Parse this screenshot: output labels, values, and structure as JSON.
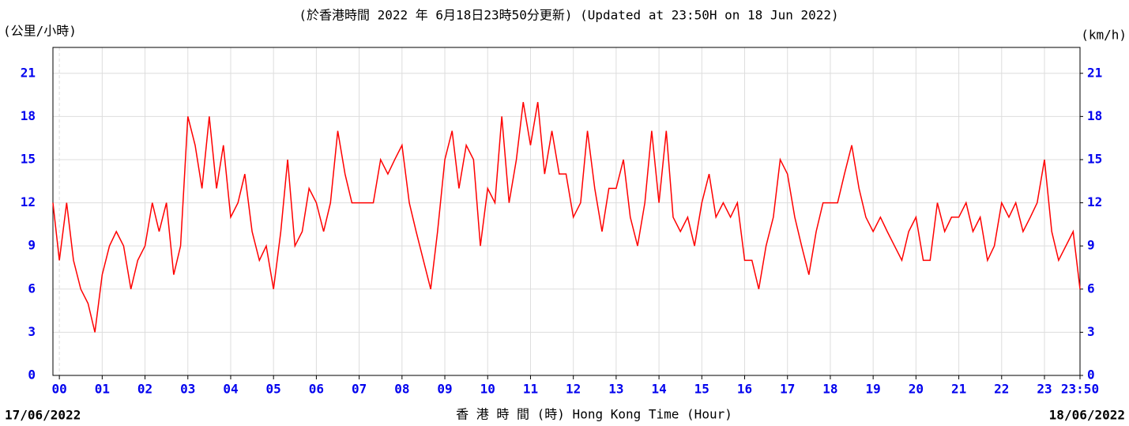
{
  "chart_data": {
    "type": "line",
    "title": "(於香港時間 2022 年 6月18日23時50分更新) (Updated at 23:50H on 18 Jun 2022)",
    "y_label": "(公里/小時)",
    "y2_label": "(km/h)",
    "x_label": "香 港 時 間 (時)  Hong Kong Time (Hour)",
    "date_start": "17/06/2022",
    "date_end": "18/06/2022",
    "xlim": [
      -0.15,
      23.83
    ],
    "ylim": [
      0,
      22.8
    ],
    "y2lim": [
      0,
      22.8
    ],
    "grid": true,
    "xticks": [
      {
        "value": 0,
        "label": "00"
      },
      {
        "value": 1,
        "label": "01"
      },
      {
        "value": 2,
        "label": "02"
      },
      {
        "value": 3,
        "label": "03"
      },
      {
        "value": 4,
        "label": "04"
      },
      {
        "value": 5,
        "label": "05"
      },
      {
        "value": 6,
        "label": "06"
      },
      {
        "value": 7,
        "label": "07"
      },
      {
        "value": 8,
        "label": "08"
      },
      {
        "value": 9,
        "label": "09"
      },
      {
        "value": 10,
        "label": "10"
      },
      {
        "value": 11,
        "label": "11"
      },
      {
        "value": 12,
        "label": "12"
      },
      {
        "value": 13,
        "label": "13"
      },
      {
        "value": 14,
        "label": "14"
      },
      {
        "value": 15,
        "label": "15"
      },
      {
        "value": 16,
        "label": "16"
      },
      {
        "value": 17,
        "label": "17"
      },
      {
        "value": 18,
        "label": "18"
      },
      {
        "value": 19,
        "label": "19"
      },
      {
        "value": 20,
        "label": "20"
      },
      {
        "value": 21,
        "label": "21"
      },
      {
        "value": 22,
        "label": "22"
      },
      {
        "value": 23,
        "label": "23"
      },
      {
        "value": 23.83,
        "label": "23:50"
      }
    ],
    "yticks": [
      0,
      3,
      6,
      9,
      12,
      15,
      18,
      21
    ],
    "y2ticks": [
      0,
      3,
      6,
      9,
      12,
      15,
      18,
      21
    ],
    "x": [
      -0.15,
      0,
      0.17,
      0.33,
      0.5,
      0.67,
      0.83,
      1,
      1.17,
      1.33,
      1.5,
      1.67,
      1.83,
      2,
      2.17,
      2.33,
      2.5,
      2.67,
      2.83,
      3,
      3.17,
      3.33,
      3.5,
      3.67,
      3.83,
      4,
      4.17,
      4.33,
      4.5,
      4.67,
      4.83,
      5,
      5.17,
      5.33,
      5.5,
      5.67,
      5.83,
      6,
      6.17,
      6.33,
      6.5,
      6.67,
      6.83,
      7,
      7.17,
      7.33,
      7.5,
      7.67,
      7.83,
      8,
      8.17,
      8.33,
      8.5,
      8.67,
      8.83,
      9,
      9.17,
      9.33,
      9.5,
      9.67,
      9.83,
      10,
      10.17,
      10.33,
      10.5,
      10.67,
      10.83,
      11,
      11.17,
      11.33,
      11.5,
      11.67,
      11.83,
      12,
      12.17,
      12.33,
      12.5,
      12.67,
      12.83,
      13,
      13.17,
      13.33,
      13.5,
      13.67,
      13.83,
      14,
      14.17,
      14.33,
      14.5,
      14.67,
      14.83,
      15,
      15.17,
      15.33,
      15.5,
      15.67,
      15.83,
      16,
      16.17,
      16.33,
      16.5,
      16.67,
      16.83,
      17,
      17.17,
      17.33,
      17.5,
      17.67,
      17.83,
      18,
      18.17,
      18.33,
      18.5,
      18.67,
      18.83,
      19,
      19.17,
      19.33,
      19.5,
      19.67,
      19.83,
      20,
      20.17,
      20.33,
      20.5,
      20.67,
      20.83,
      21,
      21.17,
      21.33,
      21.5,
      21.67,
      21.83,
      22,
      22.17,
      22.33,
      22.5,
      22.67,
      22.83,
      23,
      23.17,
      23.33,
      23.5,
      23.67,
      23.83
    ],
    "series": [
      {
        "color": "#ff0000",
        "values": [
          12,
          8,
          12,
          8,
          6,
          5,
          3,
          7,
          9,
          10,
          9,
          6,
          8,
          9,
          12,
          10,
          12,
          7,
          9,
          18,
          16,
          13,
          18,
          13,
          16,
          11,
          12,
          14,
          10,
          8,
          9,
          6,
          10,
          15,
          9,
          10,
          13,
          12,
          10,
          12,
          17,
          14,
          12,
          12,
          12,
          12,
          15,
          14,
          15,
          16,
          12,
          10,
          8,
          6,
          10,
          15,
          17,
          13,
          16,
          15,
          9,
          13,
          12,
          18,
          12,
          15,
          19,
          16,
          19,
          14,
          17,
          14,
          14,
          11,
          12,
          17,
          13,
          10,
          13,
          13,
          15,
          11,
          9,
          12,
          17,
          12,
          17,
          11,
          10,
          11,
          9,
          12,
          14,
          11,
          12,
          11,
          12,
          8,
          8,
          6,
          9,
          11,
          15,
          14,
          11,
          9,
          7,
          10,
          12,
          12,
          12,
          14,
          16,
          13,
          11,
          10,
          11,
          10,
          9,
          8,
          10,
          11,
          8,
          8,
          12,
          10,
          11,
          11,
          12,
          10,
          11,
          8,
          9,
          12,
          11,
          12,
          10,
          11,
          12,
          15,
          10,
          8,
          9,
          10,
          6
        ]
      }
    ]
  }
}
